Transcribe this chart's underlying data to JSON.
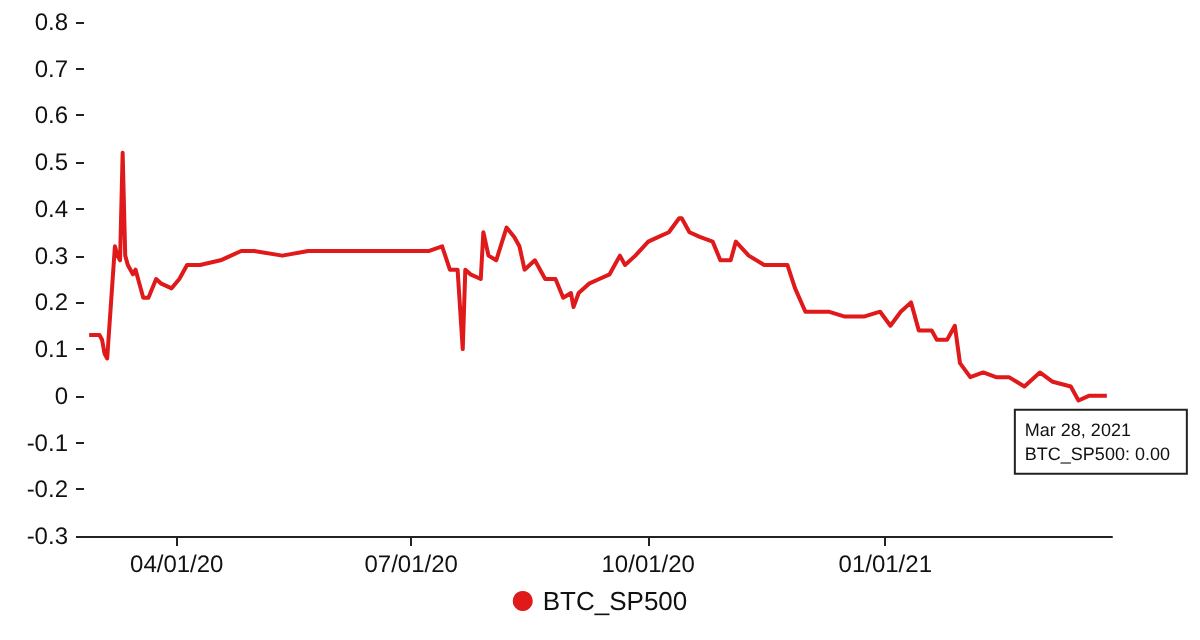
{
  "chart_data": {
    "type": "line",
    "x": [
      "2020-02-27",
      "2020-03-02",
      "2020-03-03",
      "2020-03-04",
      "2020-03-05",
      "2020-03-08",
      "2020-03-09",
      "2020-03-10",
      "2020-03-11",
      "2020-03-12",
      "2020-03-13",
      "2020-03-15",
      "2020-03-16",
      "2020-03-17",
      "2020-03-19",
      "2020-03-21",
      "2020-03-24",
      "2020-03-26",
      "2020-03-30",
      "2020-04-02",
      "2020-04-05",
      "2020-04-10",
      "2020-04-18",
      "2020-04-26",
      "2020-05-01",
      "2020-05-12",
      "2020-05-22",
      "2020-06-07",
      "2020-06-17",
      "2020-06-28",
      "2020-07-08",
      "2020-07-13",
      "2020-07-16",
      "2020-07-19",
      "2020-07-21",
      "2020-07-22",
      "2020-07-24",
      "2020-07-28",
      "2020-07-29",
      "2020-07-31",
      "2020-08-03",
      "2020-08-07",
      "2020-08-10",
      "2020-08-12",
      "2020-08-14",
      "2020-08-18",
      "2020-08-22",
      "2020-08-26",
      "2020-08-29",
      "2020-09-01",
      "2020-09-02",
      "2020-09-04",
      "2020-09-08",
      "2020-09-12",
      "2020-09-16",
      "2020-09-20",
      "2020-09-22",
      "2020-09-26",
      "2020-10-01",
      "2020-10-05",
      "2020-10-09",
      "2020-10-13",
      "2020-10-14",
      "2020-10-17",
      "2020-10-21",
      "2020-10-26",
      "2020-10-29",
      "2020-11-02",
      "2020-11-04",
      "2020-11-09",
      "2020-11-15",
      "2020-11-20",
      "2020-11-24",
      "2020-11-27",
      "2020-12-01",
      "2020-12-06",
      "2020-12-10",
      "2020-12-16",
      "2020-12-24",
      "2020-12-30",
      "2021-01-03",
      "2021-01-07",
      "2021-01-11",
      "2021-01-14",
      "2021-01-19",
      "2021-01-21",
      "2021-01-25",
      "2021-01-28",
      "2021-01-30",
      "2021-02-03",
      "2021-02-08",
      "2021-02-13",
      "2021-02-18",
      "2021-02-24",
      "2021-03-02",
      "2021-03-07",
      "2021-03-14",
      "2021-03-17",
      "2021-03-21",
      "2021-03-25",
      "2021-03-28"
    ],
    "series": [
      {
        "name": "BTC_SP500",
        "color": "#e0191b",
        "values": [
          0.13,
          0.13,
          0.12,
          0.09,
          0.08,
          0.32,
          0.3,
          0.29,
          0.52,
          0.3,
          0.28,
          0.26,
          0.27,
          0.25,
          0.21,
          0.21,
          0.25,
          0.24,
          0.23,
          0.25,
          0.28,
          0.28,
          0.29,
          0.31,
          0.31,
          0.3,
          0.31,
          0.31,
          0.31,
          0.31,
          0.31,
          0.32,
          0.27,
          0.27,
          0.1,
          0.27,
          0.26,
          0.25,
          0.35,
          0.3,
          0.29,
          0.36,
          0.34,
          0.32,
          0.27,
          0.29,
          0.25,
          0.25,
          0.21,
          0.22,
          0.19,
          0.22,
          0.24,
          0.25,
          0.26,
          0.3,
          0.28,
          0.3,
          0.33,
          0.34,
          0.35,
          0.38,
          0.38,
          0.35,
          0.34,
          0.33,
          0.29,
          0.29,
          0.33,
          0.3,
          0.28,
          0.28,
          0.28,
          0.23,
          0.18,
          0.18,
          0.18,
          0.17,
          0.17,
          0.18,
          0.15,
          0.18,
          0.2,
          0.14,
          0.14,
          0.12,
          0.12,
          0.15,
          0.07,
          0.04,
          0.05,
          0.04,
          0.04,
          0.02,
          0.05,
          0.03,
          0.02,
          -0.01,
          0,
          0,
          0
        ]
      }
    ],
    "xlim": [
      "2020-02-25",
      "2021-03-30"
    ],
    "xticks": [
      {
        "value": "2020-04-01",
        "label": "04/01/20"
      },
      {
        "value": "2020-07-01",
        "label": "07/01/20"
      },
      {
        "value": "2020-10-01",
        "label": "10/01/20"
      },
      {
        "value": "2021-01-01",
        "label": "01/01/21"
      }
    ],
    "ylim": [
      -0.3,
      0.8
    ],
    "yticks": [
      -0.3,
      -0.2,
      -0.1,
      0,
      0.1,
      0.2,
      0.3,
      0.4,
      0.5,
      0.6,
      0.7,
      0.8
    ],
    "grid": false,
    "legend": "bottom",
    "marker": "none",
    "line_style": "solid",
    "annotations": [
      {
        "text": "Mar 28, 2021\nBTC_SP500: 0.00",
        "x": "2021-03-28",
        "y": 0
      }
    ]
  }
}
